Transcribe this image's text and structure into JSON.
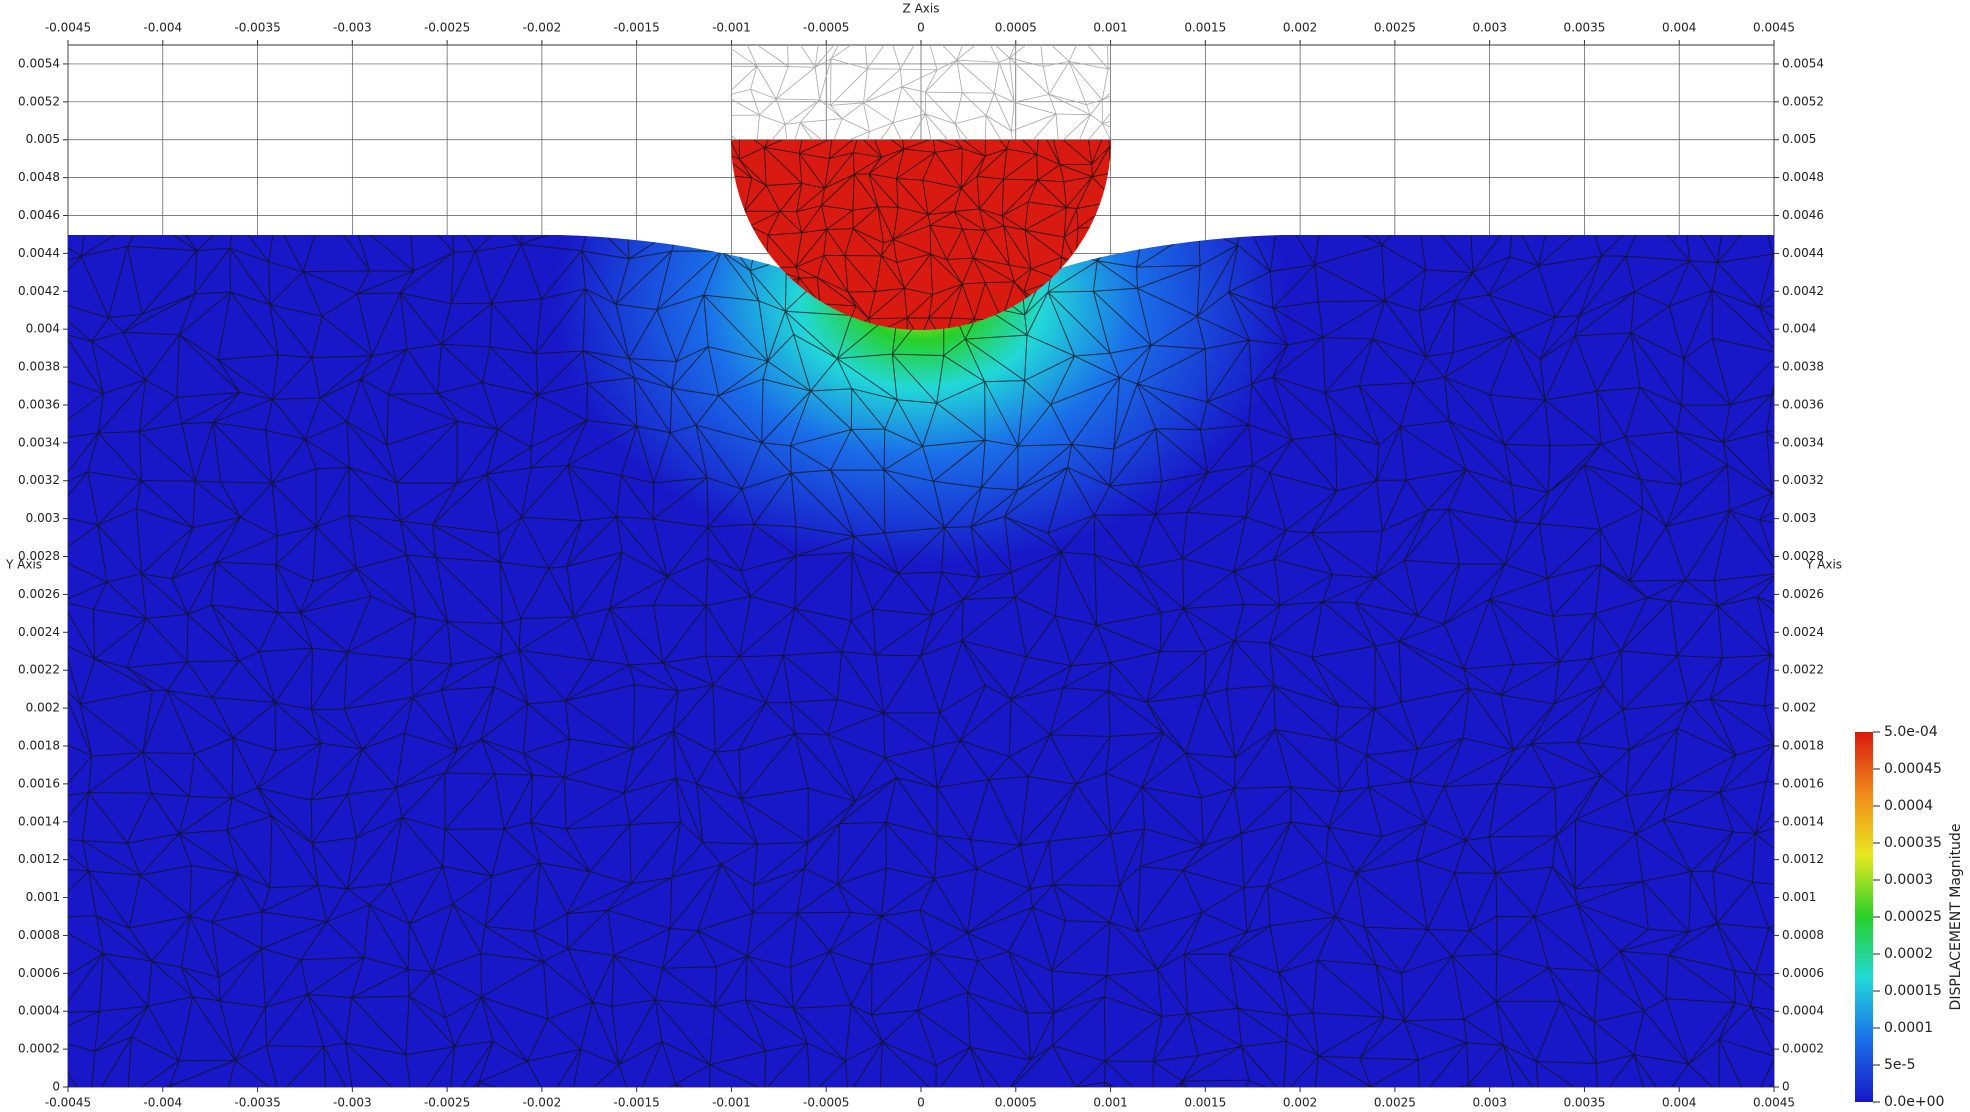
{
  "chart_data": {
    "type": "field",
    "x_label": "Z Axis",
    "y_label": "Y Axis",
    "xlim": [
      -0.0045,
      0.0045
    ],
    "ylim": [
      0,
      0.0055
    ],
    "xticks": [
      -0.0045,
      -0.004,
      -0.0035,
      -0.003,
      -0.0025,
      -0.002,
      -0.0015,
      -0.001,
      -0.0005,
      0,
      0.0005,
      0.001,
      0.0015,
      0.002,
      0.0025,
      0.003,
      0.0035,
      0.004,
      0.0045
    ],
    "yticks": [
      0,
      0.0002,
      0.0004,
      0.0006,
      0.0008,
      0.001,
      0.0012,
      0.0014,
      0.0016,
      0.0018,
      0.002,
      0.0022,
      0.0024,
      0.0026,
      0.0028,
      0.003,
      0.0032,
      0.0034,
      0.0036,
      0.0038,
      0.004,
      0.0042,
      0.0044,
      0.0046,
      0.0048,
      0.005,
      0.0052,
      0.0054
    ],
    "grid": true,
    "colorbar": {
      "title": "DISPLACEMENT Magnitude",
      "lim": [
        0,
        0.0005
      ],
      "ticks": [
        {
          "value": 0,
          "label": "0.0e+00"
        },
        {
          "value": 5e-05,
          "label": "5e-5"
        },
        0.0001,
        0.00015,
        0.0002,
        0.00025,
        0.0003,
        0.00035,
        0.0004,
        0.00045,
        {
          "value": 0.0005,
          "label": "5.0e-04"
        }
      ],
      "colormap": [
        "#1818c8",
        "#1a6ee8",
        "#22d8d8",
        "#28d028",
        "#e8e820",
        "#f08a1a",
        "#d81a10"
      ]
    }
  }
}
